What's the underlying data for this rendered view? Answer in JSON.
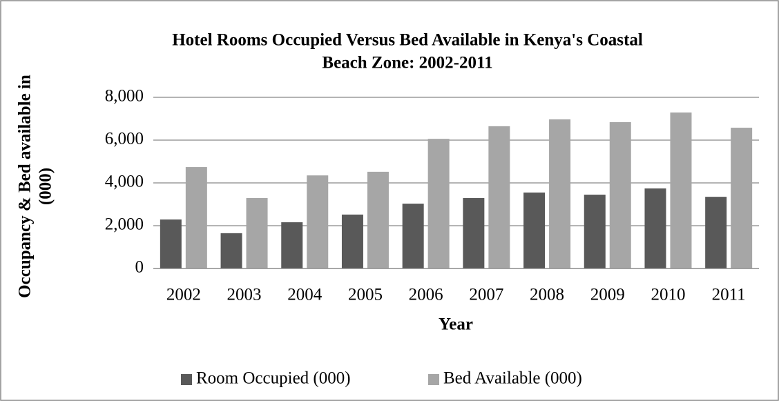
{
  "chart_data": {
    "type": "bar",
    "title": [
      "Hotel Rooms Occupied Versus Bed Available in Kenya's Coastal",
      "Beach Zone: 2002-2011"
    ],
    "xlabel": "Year",
    "ylabel": [
      "Occupancy & Bed available in",
      "(000)"
    ],
    "categories": [
      "2002",
      "2003",
      "2004",
      "2005",
      "2006",
      "2007",
      "2008",
      "2009",
      "2010",
      "2011"
    ],
    "series": [
      {
        "name": "Room Occupied (000)",
        "color": "#595959",
        "values": [
          2290,
          1650,
          2160,
          2520,
          3030,
          3290,
          3550,
          3450,
          3740,
          3350
        ]
      },
      {
        "name": "Bed Available (000)",
        "color": "#a6a6a6",
        "values": [
          4740,
          3290,
          4350,
          4520,
          6060,
          6650,
          6970,
          6840,
          7290,
          6580
        ]
      }
    ],
    "ylim": [
      0,
      8000
    ],
    "yticks": [
      0,
      {
        "value": 2000,
        "label": "2,000"
      },
      {
        "value": 4000,
        "label": "4,000"
      },
      {
        "value": 6000,
        "label": "6,000"
      },
      {
        "value": 8000,
        "label": "8,000"
      }
    ],
    "grid": true,
    "legend": "bottom"
  }
}
